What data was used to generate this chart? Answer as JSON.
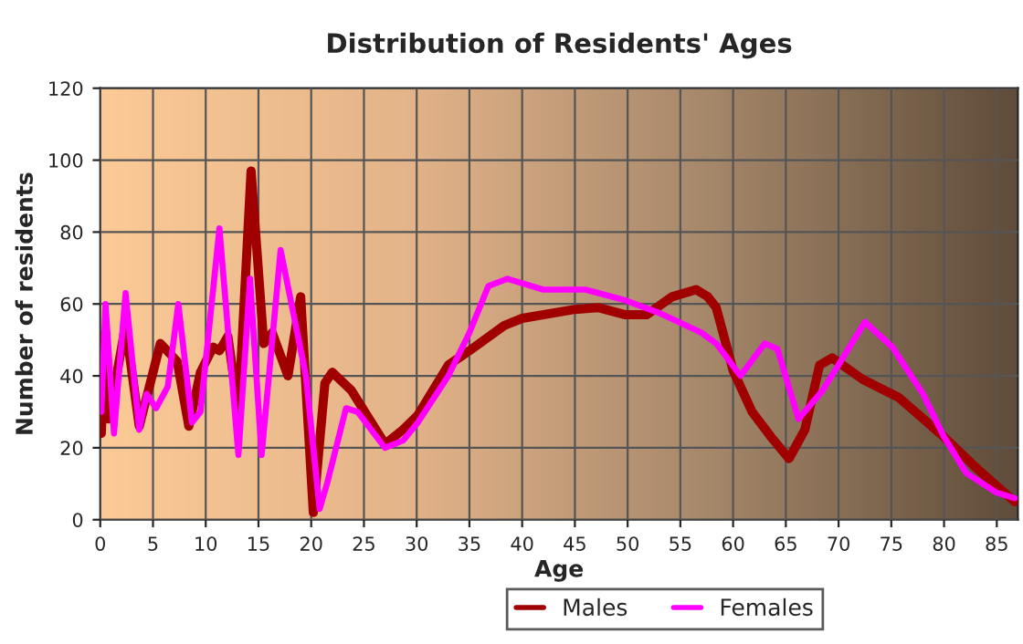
{
  "chart_data": {
    "type": "line",
    "title": "Distribution of Residents' Ages",
    "xlabel": "Age",
    "ylabel": "Number of residents",
    "xlim": [
      0,
      87
    ],
    "xticks": [
      0,
      5,
      10,
      15,
      20,
      25,
      30,
      35,
      40,
      45,
      50,
      55,
      60,
      65,
      70,
      75,
      80,
      85
    ],
    "ylim": [
      0,
      120
    ],
    "yticks": [
      0,
      20,
      40,
      60,
      80,
      100,
      120
    ],
    "grid": true,
    "legend": "bottom",
    "line_style": "solid",
    "marker": "none",
    "series": [
      {
        "name": "Males",
        "color": "#a00000",
        "x": [
          0.1,
          0.5,
          0.8,
          2.4,
          3.7,
          5.7,
          7.3,
          8.4,
          9.5,
          10.7,
          11.3,
          12.1,
          13.1,
          14.3,
          15.5,
          16.3,
          17.8,
          19.0,
          20.2,
          21.3,
          22.0,
          23.8,
          27.0,
          28.7,
          30.1,
          33.0,
          35.0,
          38.3,
          40.0,
          45.0,
          47.2,
          49.8,
          51.8,
          54.2,
          56.5,
          57.6,
          58.4,
          60.0,
          61.8,
          63.6,
          65.3,
          66.8,
          68.2,
          69.4,
          72.3,
          75.7,
          80.0,
          83.2,
          86.7
        ],
        "values": [
          24,
          52,
          28,
          54,
          26,
          49,
          44,
          26,
          41,
          48,
          47,
          51,
          30,
          97,
          49,
          52,
          40,
          62,
          2,
          38,
          41,
          36,
          21,
          25,
          29,
          43,
          47,
          54,
          56,
          58.5,
          59,
          57,
          57,
          62,
          64,
          62,
          59,
          41.5,
          30,
          23,
          17,
          25,
          43,
          45,
          39,
          34,
          23,
          14,
          5
        ]
      },
      {
        "name": "Females",
        "color": "#ff00ff",
        "x": [
          0.1,
          0.5,
          1.3,
          2.4,
          3.7,
          4.4,
          5.3,
          6.4,
          7.4,
          8.7,
          9.5,
          11.3,
          13.1,
          14.2,
          15.3,
          17.1,
          19.5,
          20.8,
          21.5,
          23.3,
          24.4,
          27.0,
          28.7,
          30.1,
          33.0,
          35.0,
          36.8,
          38.6,
          42.0,
          46.0,
          49.8,
          53.0,
          57.0,
          58.4,
          60.7,
          63.0,
          64.2,
          66.2,
          68.5,
          70.2,
          72.5,
          75.1,
          78.0,
          80.0,
          82.1,
          85.0,
          86.7
        ],
        "values": [
          30,
          60,
          24,
          63,
          25,
          35,
          31,
          37,
          60,
          27,
          30,
          81,
          18,
          67,
          18,
          75,
          40,
          3,
          10,
          31,
          30,
          20,
          22,
          27,
          40,
          52,
          65,
          67,
          64,
          64,
          61,
          57.5,
          52,
          49,
          40,
          49,
          47.5,
          28,
          36,
          44,
          55,
          48,
          35,
          23,
          13,
          7.5,
          6
        ]
      }
    ]
  }
}
